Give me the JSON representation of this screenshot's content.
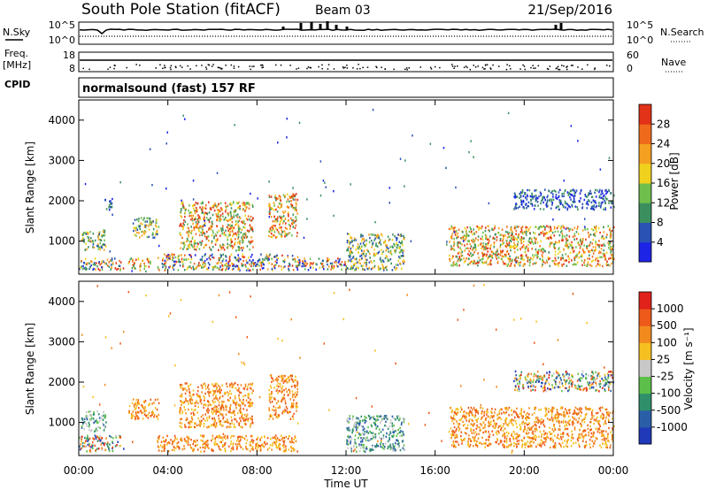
{
  "header": {
    "title": "South Pole Station (fitACF)",
    "beam": "Beam 03",
    "date": "21/Sep/2016"
  },
  "status_panels": {
    "nsky_label": "N.Sky",
    "nsky_ticks": [
      "10^5",
      "10^0"
    ],
    "nsearch_label": "N.Search",
    "nsearch_ticks": [
      "10^5",
      "10^0"
    ],
    "freq_label": "Freq.",
    "freq_unit": "[MHz]",
    "freq_ticks": [
      "18",
      "8"
    ],
    "nave_label": "Nave",
    "nave_ticks": [
      "60",
      "0"
    ],
    "cpid_label": "CPID",
    "cpid_text": "normalsound (fast) 157 RF"
  },
  "chart_data": [
    {
      "type": "heatmap",
      "panel": "power",
      "ylabel": "Slant Range [km]",
      "xlabel": "",
      "xlim": [
        0,
        24
      ],
      "ylim": [
        180,
        4500
      ],
      "y_ticks": [
        "1000",
        "2000",
        "3000",
        "4000"
      ],
      "colorbar": {
        "label": "Power [dB]",
        "ticks": [
          "4",
          "8",
          "12",
          "16",
          "20",
          "24",
          "28"
        ],
        "colors": [
          "#1d24e6",
          "#2a52b4",
          "#3b8f5f",
          "#6fbf4c",
          "#f0d21e",
          "#f5a020",
          "#f06a1c",
          "#e23218"
        ]
      },
      "regions": [
        {
          "t": [
            0.0,
            2.0
          ],
          "r": [
            300,
            600
          ],
          "intensity": "mixed"
        },
        {
          "t": [
            0.1,
            1.2
          ],
          "r": [
            800,
            1300
          ],
          "intensity": "mid"
        },
        {
          "t": [
            1.1,
            1.5
          ],
          "r": [
            1800,
            2100
          ],
          "intensity": "low"
        },
        {
          "t": [
            2.2,
            3.2
          ],
          "r": [
            300,
            600
          ],
          "intensity": "high"
        },
        {
          "t": [
            2.4,
            3.6
          ],
          "r": [
            1100,
            1600
          ],
          "intensity": "mid"
        },
        {
          "t": [
            3.5,
            9.8
          ],
          "r": [
            300,
            700
          ],
          "intensity": "mixed"
        },
        {
          "t": [
            4.5,
            7.8
          ],
          "r": [
            800,
            2000
          ],
          "intensity": "high"
        },
        {
          "t": [
            8.5,
            9.8
          ],
          "r": [
            1100,
            2200
          ],
          "intensity": "high"
        },
        {
          "t": [
            9.8,
            12.0
          ],
          "r": [
            300,
            600
          ],
          "intensity": "mixed"
        },
        {
          "t": [
            12.0,
            14.6
          ],
          "r": [
            300,
            1200
          ],
          "intensity": "mid"
        },
        {
          "t": [
            16.6,
            24.0
          ],
          "r": [
            400,
            1400
          ],
          "intensity": "high"
        },
        {
          "t": [
            19.5,
            24.0
          ],
          "r": [
            1800,
            2300
          ],
          "intensity": "low"
        }
      ]
    },
    {
      "type": "heatmap",
      "panel": "velocity",
      "ylabel": "Slant Range [km]",
      "xlabel": "Time UT",
      "xlim": [
        0,
        24
      ],
      "ylim": [
        180,
        4500
      ],
      "x_ticks": [
        "00:00",
        "04:00",
        "08:00",
        "12:00",
        "16:00",
        "20:00",
        "00:00"
      ],
      "y_ticks": [
        "1000",
        "2000",
        "3000",
        "4000"
      ],
      "colorbar": {
        "label": "Velocity [m s⁻¹]",
        "ticks": [
          "1000",
          "500",
          "100",
          "25",
          "-25",
          "-100",
          "-500",
          "-1000"
        ],
        "colors": [
          "#1f39b8",
          "#2a5fa8",
          "#2f8f6a",
          "#5cbf4a",
          "#c8c8c8",
          "#f5c020",
          "#f28a1e",
          "#ee5a1a",
          "#e0221a"
        ]
      },
      "regions": [
        {
          "t": [
            0.0,
            2.0
          ],
          "r": [
            300,
            700
          ],
          "intensity": "mixed"
        },
        {
          "t": [
            0.1,
            1.2
          ],
          "r": [
            800,
            1300
          ],
          "intensity": "mid"
        },
        {
          "t": [
            2.2,
            3.6
          ],
          "r": [
            1100,
            1600
          ],
          "intensity": "low"
        },
        {
          "t": [
            3.5,
            9.8
          ],
          "r": [
            300,
            700
          ],
          "intensity": "low"
        },
        {
          "t": [
            4.5,
            7.8
          ],
          "r": [
            900,
            2000
          ],
          "intensity": "low"
        },
        {
          "t": [
            8.5,
            9.8
          ],
          "r": [
            1100,
            2200
          ],
          "intensity": "low"
        },
        {
          "t": [
            12.0,
            14.6
          ],
          "r": [
            300,
            1200
          ],
          "intensity": "mid"
        },
        {
          "t": [
            16.6,
            24.0
          ],
          "r": [
            400,
            1400
          ],
          "intensity": "low"
        },
        {
          "t": [
            19.5,
            24.0
          ],
          "r": [
            1800,
            2300
          ],
          "intensity": "mixed"
        }
      ]
    }
  ]
}
